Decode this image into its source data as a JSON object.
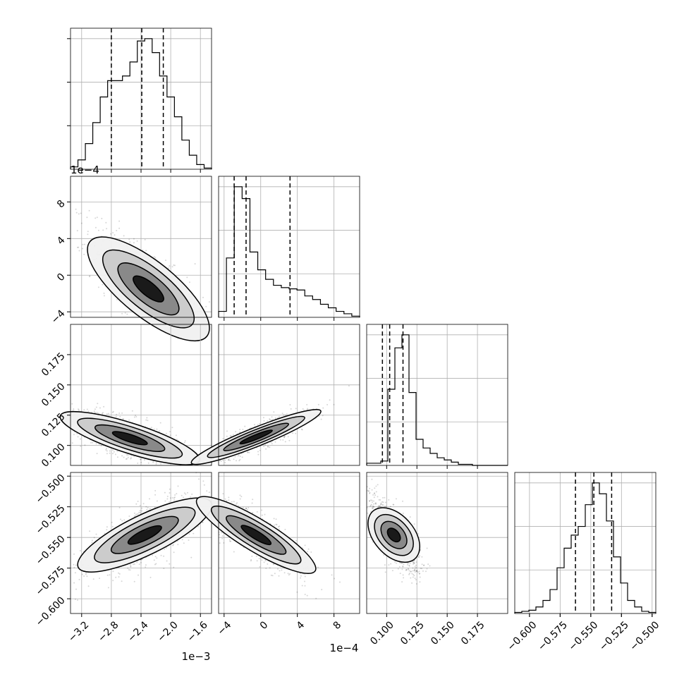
{
  "chart_data": {
    "type": "corner",
    "parameters": [
      {
        "id": "p0",
        "range": [
          -0.00335,
          -0.00145
        ],
        "tick_values": [
          -0.0032,
          -0.0028,
          -0.0024,
          -0.002,
          -0.0016
        ],
        "tick_labels": [
          "−3.2",
          "−2.8",
          "−2.4",
          "−2.0",
          "−1.6"
        ],
        "offset_label": "1e−3",
        "quantiles": [
          -0.0028,
          -0.00239,
          -0.0021
        ],
        "hist_counts": [
          2,
          8,
          22,
          40,
          62,
          76,
          76,
          80,
          92,
          110,
          112,
          100,
          80,
          62,
          45,
          25,
          12,
          4,
          1
        ]
      },
      {
        "id": "p1",
        "range": [
          -0.00046,
          0.00108
        ],
        "tick_values": [
          -0.0004,
          0,
          0.0004,
          0.0008
        ],
        "tick_labels": [
          "−4",
          "0",
          "4",
          "8"
        ],
        "offset_label": "1e−4",
        "quantiles": [
          -0.00029,
          -0.00016,
          0.00032
        ],
        "hist_counts": [
          5,
          50,
          110,
          100,
          55,
          40,
          32,
          27,
          25,
          24,
          23,
          18,
          15,
          11,
          8,
          5,
          3,
          1
        ]
      },
      {
        "id": "p2",
        "range": [
          0.0835,
          0.2
        ],
        "tick_values": [
          0.1,
          0.125,
          0.15,
          0.175
        ],
        "tick_labels": [
          "0.100",
          "0.125",
          "0.150",
          "0.175"
        ],
        "quantiles": [
          0.0965,
          0.1025,
          0.1135
        ],
        "hist_counts": [
          2,
          2,
          4,
          70,
          108,
          120,
          67,
          24,
          16,
          11,
          7,
          5,
          3,
          1,
          1,
          0,
          0,
          0,
          0,
          0
        ]
      },
      {
        "id": "p3",
        "range": [
          -0.612,
          -0.497
        ],
        "tick_values": [
          -0.6,
          -0.575,
          -0.55,
          -0.525,
          -0.5
        ],
        "tick_labels": [
          "−0.600",
          "−0.575",
          "−0.550",
          "−0.525",
          "−0.500"
        ],
        "quantiles": [
          -0.5625,
          -0.5475,
          -0.533
        ],
        "hist_counts": [
          1,
          2,
          3,
          6,
          12,
          22,
          42,
          60,
          72,
          80,
          100,
          120,
          110,
          85,
          52,
          28,
          12,
          6,
          2,
          1
        ]
      }
    ],
    "y_offset_label": "1e−4",
    "correlations": {
      "1,0": {
        "mean": [
          -0.0023,
          -0.00015
        ],
        "sd": [
          0.00038,
          0.00032
        ],
        "rho": -0.78
      },
      "2,0": {
        "mean": [
          -0.00255,
          0.106
        ],
        "sd": [
          0.00038,
          0.011
        ],
        "rho": -0.68
      },
      "2,1": {
        "mean": [
          -5e-05,
          0.107
        ],
        "sd": [
          0.00028,
          0.01
        ],
        "rho": 0.85
      },
      "3,0": {
        "mean": [
          -0.00235,
          -0.548
        ],
        "sd": [
          0.00038,
          0.0155
        ],
        "rho": 0.72
      },
      "3,1": {
        "mean": [
          -5e-05,
          -0.548
        ],
        "sd": [
          0.00028,
          0.0155
        ],
        "rho": -0.82
      },
      "3,2": {
        "mean": [
          0.106,
          -0.548
        ],
        "sd": [
          0.01,
          0.0155
        ],
        "rho": -0.72
      }
    },
    "grid": true
  }
}
